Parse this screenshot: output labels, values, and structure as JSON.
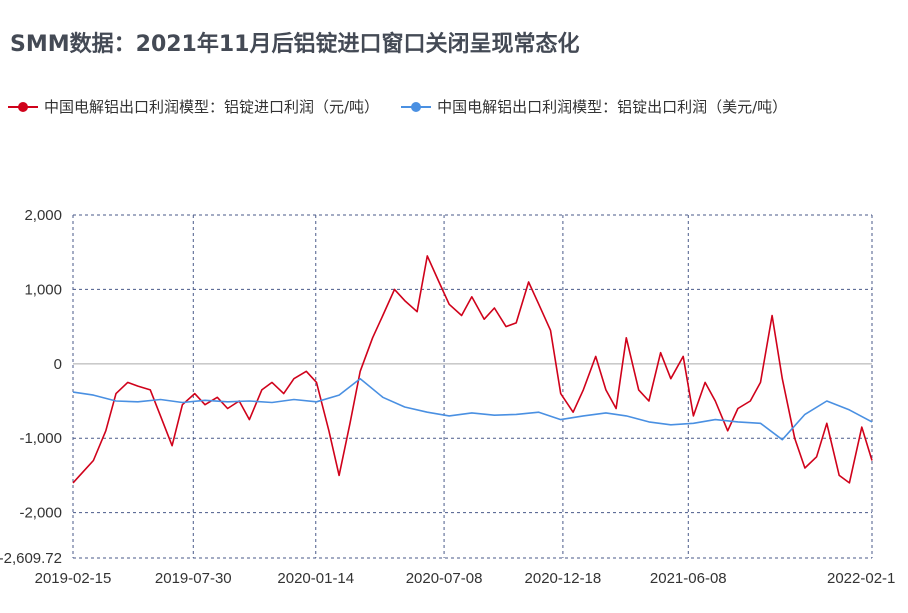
{
  "chart_data": {
    "type": "line",
    "title": "SMM数据：2021年11月后铝锭进口窗口关闭呈现常态化",
    "x_ticks": [
      "2019-02-15",
      "2019-07-30",
      "2020-01-14",
      "2020-07-08",
      "2020-12-18",
      "2021-06-08",
      "2022-02-1"
    ],
    "y_ticks": [
      "2,000",
      "1,000",
      "0",
      "-1,000",
      "-2,000",
      "-2,609.72"
    ],
    "ylim": [
      -2609.72,
      2000
    ],
    "grid": true,
    "legend_position": "top",
    "series": [
      {
        "name": "中国电解铝出口利润模型：铝锭进口利润（元/吨）",
        "color": "#d0021b",
        "x": [
          "2019-02-15",
          "2019-03-01",
          "2019-03-15",
          "2019-04-01",
          "2019-04-15",
          "2019-05-01",
          "2019-05-15",
          "2019-06-01",
          "2019-06-15",
          "2019-07-01",
          "2019-07-15",
          "2019-08-01",
          "2019-08-15",
          "2019-09-01",
          "2019-09-15",
          "2019-10-01",
          "2019-10-15",
          "2019-11-01",
          "2019-11-15",
          "2019-12-01",
          "2019-12-15",
          "2020-01-01",
          "2020-01-15",
          "2020-02-01",
          "2020-02-15",
          "2020-03-01",
          "2020-03-15",
          "2020-04-01",
          "2020-04-15",
          "2020-05-01",
          "2020-05-15",
          "2020-06-01",
          "2020-06-15",
          "2020-07-01",
          "2020-07-15",
          "2020-08-01",
          "2020-08-15",
          "2020-09-01",
          "2020-09-15",
          "2020-10-01",
          "2020-10-15",
          "2020-11-01",
          "2020-11-15",
          "2020-12-01",
          "2020-12-15",
          "2021-01-01",
          "2021-01-15",
          "2021-02-01",
          "2021-02-15",
          "2021-03-01",
          "2021-03-15",
          "2021-04-01",
          "2021-04-15",
          "2021-05-01",
          "2021-05-15",
          "2021-06-01",
          "2021-06-15",
          "2021-07-01",
          "2021-07-15",
          "2021-08-01",
          "2021-08-15",
          "2021-09-01",
          "2021-09-15",
          "2021-10-01",
          "2021-10-15",
          "2021-11-01",
          "2021-11-15",
          "2021-12-01",
          "2021-12-15",
          "2022-01-01",
          "2022-01-15",
          "2022-02-01",
          "2022-02-15"
        ],
        "values": [
          -1600,
          -1450,
          -1300,
          -900,
          -400,
          -250,
          -300,
          -350,
          -700,
          -1100,
          -550,
          -400,
          -550,
          -450,
          -600,
          -500,
          -750,
          -350,
          -250,
          -400,
          -200,
          -100,
          -250,
          -900,
          -1500,
          -800,
          -100,
          350,
          650,
          1000,
          850,
          700,
          1450,
          1100,
          800,
          650,
          900,
          600,
          750,
          500,
          550,
          1100,
          800,
          450,
          -400,
          -650,
          -350,
          100,
          -350,
          -600,
          350,
          -350,
          -500,
          150,
          -200,
          100,
          -700,
          -250,
          -500,
          -900,
          -600,
          -500,
          -250,
          650,
          -200,
          -1000,
          -1400,
          -1250,
          -800,
          -1500,
          -1600,
          -850,
          -1300
        ]
      },
      {
        "name": "中国电解铝出口利润模型：铝锭出口利润（美元/吨）",
        "color": "#4a90e2",
        "x": [
          "2019-02-15",
          "2019-03-15",
          "2019-04-15",
          "2019-05-15",
          "2019-06-15",
          "2019-07-15",
          "2019-08-15",
          "2019-09-15",
          "2019-10-15",
          "2019-11-15",
          "2019-12-15",
          "2020-01-15",
          "2020-02-15",
          "2020-03-15",
          "2020-04-15",
          "2020-05-15",
          "2020-06-15",
          "2020-07-15",
          "2020-08-15",
          "2020-09-15",
          "2020-10-15",
          "2020-11-15",
          "2020-12-15",
          "2021-01-15",
          "2021-02-15",
          "2021-03-15",
          "2021-04-15",
          "2021-05-15",
          "2021-06-15",
          "2021-07-15",
          "2021-08-15",
          "2021-09-15",
          "2021-10-15",
          "2021-11-15",
          "2021-12-15",
          "2022-01-15",
          "2022-02-15"
        ],
        "values": [
          -380,
          -420,
          -500,
          -510,
          -480,
          -520,
          -490,
          -510,
          -500,
          -520,
          -480,
          -510,
          -420,
          -200,
          -450,
          -580,
          -650,
          -700,
          -660,
          -690,
          -680,
          -650,
          -750,
          -700,
          -660,
          -700,
          -780,
          -820,
          -800,
          -750,
          -780,
          -800,
          -1020,
          -680,
          -500,
          -620,
          -780
        ]
      }
    ]
  }
}
